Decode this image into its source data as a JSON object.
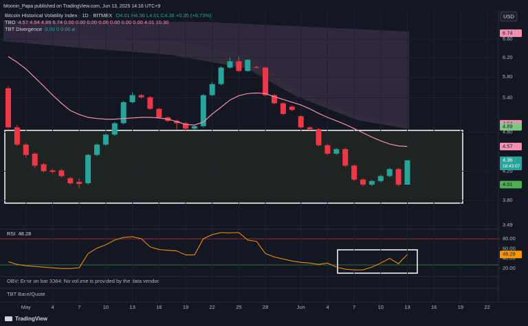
{
  "header": {
    "publisher": "Moonin_Papa published on TradingView.com, Jun 13, 2025 14:16 UTC+9",
    "currency": "USD"
  },
  "chart_data": [
    {
      "type": "candlestick",
      "title": "Bitcoin Historical Volatility Index · 1D · BITMEX",
      "ohlc": "O4.01 H4.36 L4.01 C4.36 +0.35 (+8.73%)",
      "categories": [
        null,
        null,
        "May",
        null,
        null,
        "4",
        null,
        null,
        "7",
        null,
        null,
        "10",
        null,
        null,
        "13",
        null,
        null,
        "16",
        null,
        null,
        "19",
        null,
        null,
        "22",
        null,
        null,
        "25",
        null,
        null,
        "28",
        null,
        null,
        null,
        "Jun",
        null,
        null,
        "4",
        null,
        null,
        "7",
        null,
        null,
        "10",
        null,
        null,
        "13",
        null,
        null,
        "16",
        null,
        null,
        "19",
        null,
        null,
        "22",
        null
      ],
      "open": [
        5.58,
        4.88,
        4.6,
        4.46,
        4.3,
        4.21,
        4.21,
        4.1,
        4.05,
        4.03,
        4.44,
        4.6,
        4.76,
        4.95,
        5.32,
        5.45,
        5.41,
        5.2,
        5.05,
        4.99,
        4.95,
        4.86,
        4.9,
        5.45,
        5.66,
        5.99,
        6.12,
        5.92,
        6.0,
        5.99,
        5.45,
        5.3,
        5.24,
        5.07,
        4.88,
        4.85,
        4.59,
        4.46,
        4.53,
        4.28,
        4.08,
        4.01,
        4.06,
        4.13,
        4.23,
        4.01,
        null,
        null,
        null,
        null,
        null,
        null,
        null,
        null,
        null,
        null
      ],
      "high": [
        5.62,
        4.92,
        4.62,
        4.48,
        4.32,
        4.23,
        4.23,
        4.12,
        4.1,
        4.46,
        4.62,
        4.78,
        4.97,
        5.34,
        5.5,
        5.47,
        5.43,
        5.22,
        5.07,
        5.01,
        4.97,
        4.92,
        5.47,
        5.7,
        6.02,
        6.2,
        6.22,
        6.17,
        6.02,
        6.01,
        5.47,
        5.32,
        5.26,
        5.09,
        4.9,
        4.87,
        4.61,
        4.55,
        4.55,
        4.3,
        4.1,
        4.08,
        4.15,
        4.25,
        4.25,
        4.36,
        null,
        null,
        null,
        null,
        null,
        null,
        null,
        null,
        null,
        null
      ],
      "low": [
        4.86,
        4.58,
        4.4,
        4.25,
        4.18,
        4.17,
        4.11,
        4.01,
        3.96,
        4.01,
        4.42,
        4.58,
        4.74,
        4.93,
        5.3,
        5.39,
        5.18,
        5.03,
        4.97,
        4.85,
        4.82,
        4.84,
        4.88,
        5.43,
        5.64,
        5.97,
        5.9,
        5.9,
        5.97,
        5.43,
        5.28,
        5.09,
        5.16,
        4.86,
        4.83,
        4.57,
        4.44,
        4.44,
        4.26,
        4.06,
        3.99,
        3.99,
        4.04,
        4.11,
        3.99,
        4.01,
        null,
        null,
        null,
        null,
        null,
        null,
        null,
        null,
        null,
        null
      ],
      "close": [
        4.88,
        4.6,
        4.44,
        4.28,
        4.2,
        4.19,
        4.13,
        4.03,
        4.02,
        4.44,
        4.6,
        4.76,
        4.95,
        5.32,
        5.45,
        5.41,
        5.2,
        5.05,
        4.99,
        4.95,
        4.86,
        4.9,
        5.45,
        5.66,
        5.99,
        6.12,
        5.92,
        6.15,
        5.99,
        5.45,
        5.3,
        5.11,
        5.18,
        4.88,
        4.85,
        4.59,
        4.46,
        4.53,
        4.28,
        4.08,
        4.01,
        4.06,
        4.13,
        4.23,
        4.01,
        4.36,
        null,
        null,
        null,
        null,
        null,
        null,
        null,
        null,
        null,
        null
      ],
      "up_color": "#26a69a",
      "down_color": "#f23645",
      "log_scale": true,
      "grid": true,
      "ylim": [
        3.45,
        7.07
      ],
      "yticks": [
        3.49,
        {
          "value": 3.8,
          "label": "3.80"
        },
        {
          "value": 4.2,
          "label": "4.20"
        },
        {
          "value": 4.8,
          "label": "4.80"
        },
        {
          "value": 5.4,
          "label": "5.40"
        },
        {
          "value": 5.8,
          "label": "5.80"
        },
        {
          "value": 6.2,
          "label": "6.20"
        },
        {
          "value": 6.6,
          "label": "6.60"
        }
      ],
      "indicators": [
        {
          "name": "TBO",
          "readout": "4.57 4.94 4.89 6.74 0.00 0.00 0.00 0.00 0.00 0.00 0.00 4.01 10.30",
          "color": "#f48fb1",
          "values": [
            6.22,
            6.1,
            5.96,
            5.79,
            5.62,
            5.45,
            5.3,
            5.17,
            5.1,
            5.05,
            5.03,
            5.02,
            5.02,
            5.03,
            5.04,
            5.05,
            5.05,
            5.04,
            5.02,
            4.98,
            4.93,
            4.92,
            4.97,
            5.11,
            5.23,
            5.36,
            5.44,
            5.48,
            5.49,
            5.48,
            5.42,
            5.37,
            5.32,
            5.27,
            5.2,
            5.12,
            5.05,
            4.99,
            4.93,
            4.86,
            4.79,
            4.72,
            4.66,
            4.61,
            4.58,
            4.57,
            null,
            null,
            null,
            null,
            null,
            null,
            null,
            null,
            null,
            null
          ]
        },
        {
          "name": "TBT Divergence",
          "readout": "0.00 0 0.00 ø"
        }
      ],
      "price_labels": [
        {
          "value": 6.74,
          "color": "#f48fb1"
        },
        {
          "value": 4.94,
          "color": "#f48fb1"
        },
        {
          "value": 4.89,
          "color": "#81c784"
        },
        {
          "value": 4.57,
          "color": "#f48fb1"
        },
        {
          "value": 4.36,
          "color": "#26a69a"
        },
        {
          "value": 4.01,
          "color": "#4caf50"
        }
      ],
      "countdown": "18:43:07"
    },
    {
      "type": "line",
      "title": "RSI",
      "series": [
        {
          "name": "RSI",
          "color": "#ff9800",
          "values": [
            33.6,
            28.2,
            25.4,
            24.1,
            22.7,
            21.3,
            20.0,
            20.0,
            21.3,
            50.0,
            60.9,
            67.7,
            77.3,
            82.7,
            84.1,
            80.0,
            63.6,
            58.2,
            56.8,
            55.4,
            47.3,
            47.3,
            80.0,
            88.2,
            92.3,
            92.0,
            92.3,
            77.3,
            74.5,
            50.0,
            43.2,
            39.1,
            35.0,
            32.3,
            30.9,
            28.2,
            30.9,
            22.7,
            18.6,
            17.2,
            17.2,
            22.7,
            30.9,
            40.4,
            29.5,
            48.28,
            null,
            null,
            null,
            null,
            null,
            null,
            null,
            null,
            null,
            null
          ]
        }
      ],
      "ylim": [
        5,
        95
      ],
      "yticks": [
        {
          "value": 20,
          "label": "20.00"
        },
        {
          "value": 40,
          "label": "40.00"
        },
        {
          "value": 60,
          "label": "60.00"
        },
        {
          "value": 80,
          "label": "80.00"
        }
      ]
    }
  ],
  "panes": {
    "obv": "OBV: Error on bar 3084: No volume is provided by the data vendor.",
    "base_quote": "TBT Base/Quote"
  },
  "footer": {
    "brand": "TradingView"
  }
}
